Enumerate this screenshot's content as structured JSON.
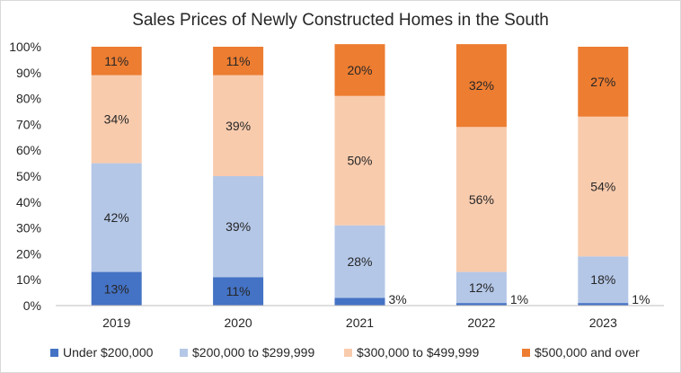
{
  "chart_data": {
    "type": "bar",
    "stacked": true,
    "title": "Sales Prices of Newly Constructed Homes in the South",
    "xlabel": "",
    "ylabel": "",
    "ylim": [
      0,
      100
    ],
    "y_ticks": [
      "0%",
      "10%",
      "20%",
      "30%",
      "40%",
      "50%",
      "60%",
      "70%",
      "80%",
      "90%",
      "100%"
    ],
    "categories": [
      "2019",
      "2020",
      "2021",
      "2022",
      "2023"
    ],
    "series": [
      {
        "name": "Under $200,000",
        "color": "#4472c4",
        "values": [
          13,
          11,
          3,
          1,
          1
        ],
        "labels": [
          "13%",
          "11%",
          "3%",
          "1%",
          "1%"
        ]
      },
      {
        "name": "$200,000 to $299,999",
        "color": "#b4c7e7",
        "values": [
          42,
          39,
          28,
          12,
          18
        ],
        "labels": [
          "42%",
          "39%",
          "28%",
          "12%",
          "18%"
        ]
      },
      {
        "name": "$300,000 to $499,999",
        "color": "#f8cbad",
        "values": [
          34,
          39,
          50,
          56,
          54
        ],
        "labels": [
          "34%",
          "39%",
          "50%",
          "56%",
          "54%"
        ]
      },
      {
        "name": "$500,000 and over",
        "color": "#ed7d31",
        "values": [
          11,
          11,
          20,
          32,
          27
        ],
        "labels": [
          "11%",
          "11%",
          "20%",
          "32%",
          "27%"
        ]
      }
    ],
    "grid": false,
    "legend": "bottom"
  }
}
